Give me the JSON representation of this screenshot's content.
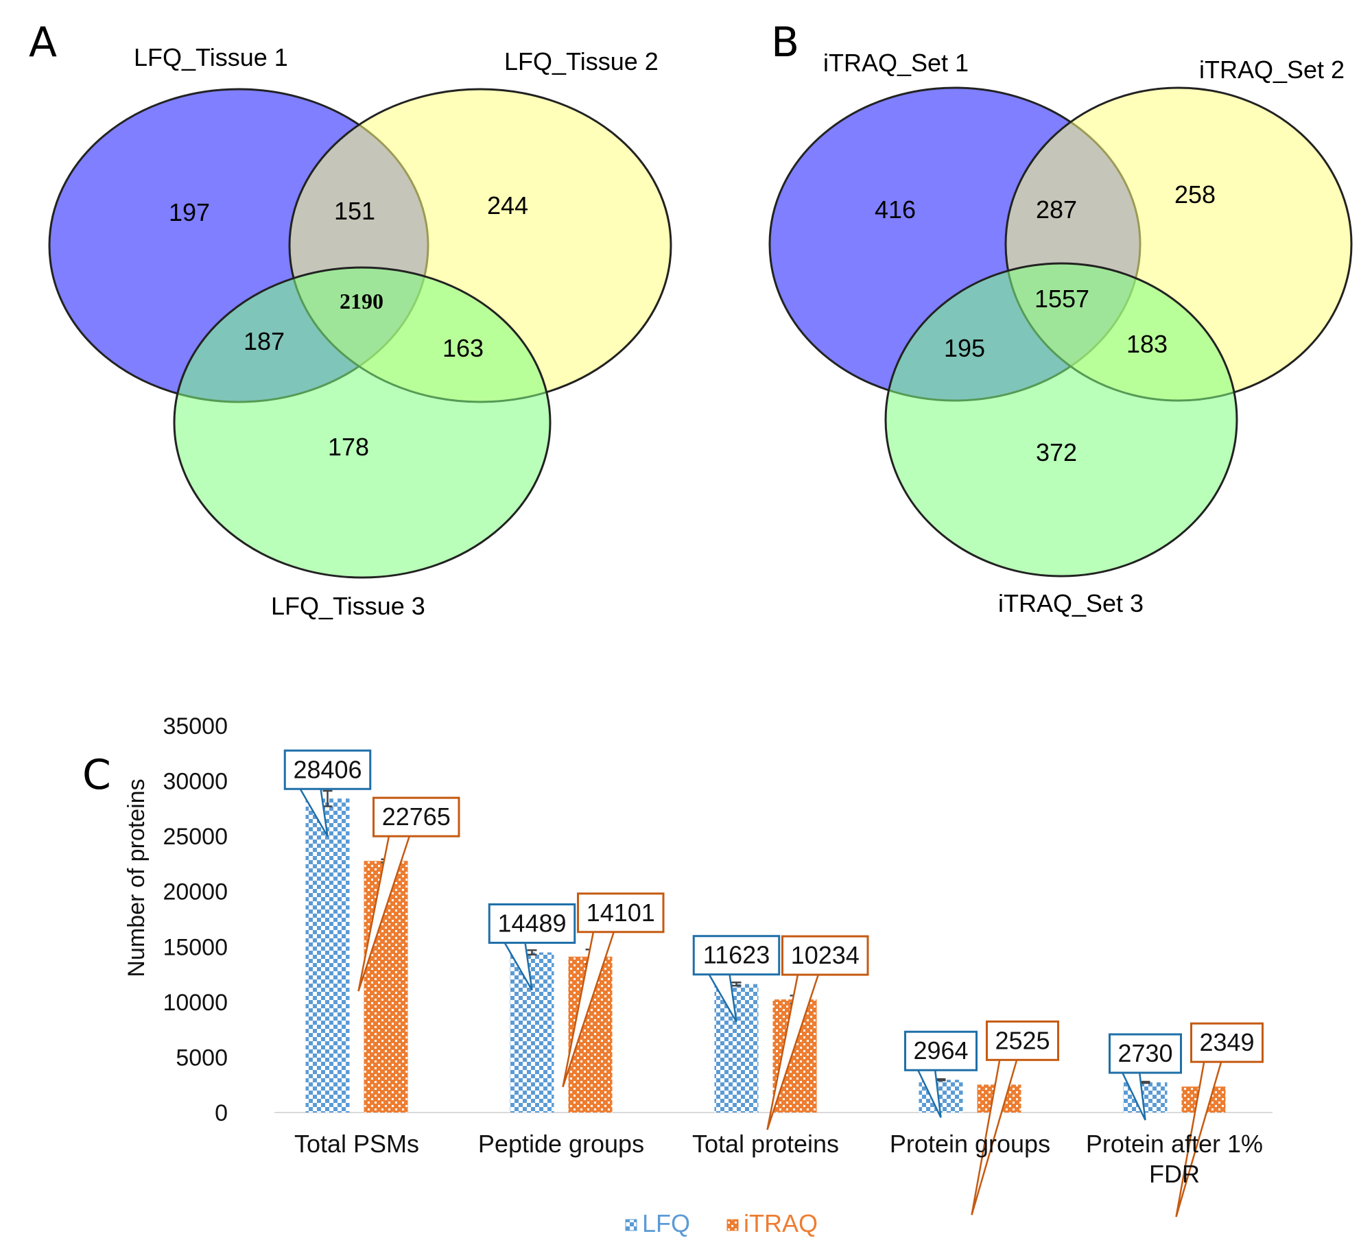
{
  "venn_a": {
    "panel_label": "A",
    "sets": [
      "LFQ_Tissue 1",
      "LFQ_Tissue 2",
      "LFQ_Tissue 3"
    ],
    "regions": {
      "only_1": "197",
      "only_2": "244",
      "only_3": "178",
      "s1_s2": "151",
      "s1_s3": "187",
      "s2_s3": "163",
      "all": "2190"
    },
    "colors": [
      "#7f7fff",
      "#ffff7f",
      "#7fff7f"
    ]
  },
  "venn_b": {
    "panel_label": "B",
    "sets": [
      "iTRAQ_Set 1",
      "iTRAQ_Set 2",
      "iTRAQ_Set 3"
    ],
    "regions": {
      "only_1": "416",
      "only_2": "258",
      "only_3": "372",
      "s1_s2": "287",
      "s1_s3": "195",
      "s2_s3": "183",
      "all": "1557"
    },
    "colors": [
      "#7f7fff",
      "#ffff7f",
      "#7fff7f"
    ]
  },
  "bar_panel": {
    "panel_label": "C"
  },
  "chart_data": {
    "type": "bar",
    "title": "",
    "xlabel": "",
    "ylabel": "Number of proteins",
    "ylim": [
      0,
      35000
    ],
    "yticks": [
      0,
      5000,
      10000,
      15000,
      20000,
      25000,
      30000,
      35000
    ],
    "categories": [
      "Total PSMs",
      "Peptide groups",
      "Total proteins",
      "Protein groups",
      "Protein after 1%\nFDR"
    ],
    "series": [
      {
        "name": "LFQ",
        "values": [
          28406,
          14489,
          11623,
          2964,
          2730
        ],
        "errors": [
          700,
          200,
          150,
          60,
          60
        ],
        "color": "#5b9bd5",
        "label_color": "#1f6fa8"
      },
      {
        "name": "iTRAQ",
        "values": [
          22765,
          14101,
          10234,
          2525,
          2349
        ],
        "errors": [
          150,
          650,
          350,
          60,
          60
        ],
        "color": "#ed7d31",
        "label_color": "#c55a11"
      }
    ],
    "data_labels": [
      [
        "28406",
        "14489",
        "11623",
        "2964",
        "2730"
      ],
      [
        "22765",
        "14101",
        "10234",
        "2525",
        "2349"
      ]
    ],
    "legend": {
      "position": "bottom",
      "entries": [
        "LFQ",
        "iTRAQ"
      ]
    }
  }
}
